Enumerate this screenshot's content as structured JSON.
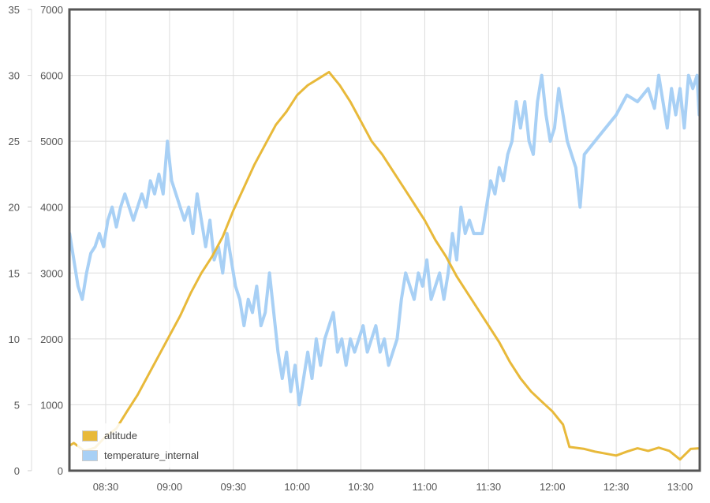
{
  "chart_data": {
    "type": "line",
    "title": "",
    "xlabel": "",
    "ylabel_left_outer": "",
    "ylabel_left_inner": "",
    "x_ticks": [
      "08:30",
      "09:00",
      "09:30",
      "10:00",
      "10:30",
      "11:00",
      "11:30",
      "12:00",
      "12:30",
      "13:00"
    ],
    "y_axis_temperature": {
      "ticks": [
        0,
        5,
        10,
        15,
        20,
        25,
        30,
        35
      ],
      "range": [
        0,
        35
      ]
    },
    "y_axis_altitude": {
      "ticks": [
        0,
        1000,
        2000,
        3000,
        4000,
        5000,
        6000,
        7000
      ],
      "range": [
        0,
        7000
      ]
    },
    "x_range": [
      "08:13",
      "13:09"
    ],
    "grid": true,
    "legend_position": "bottom-left",
    "series": [
      {
        "name": "altitude",
        "color": "#e8b93a",
        "axis": "altitude",
        "points": [
          [
            "08:13",
            380
          ],
          [
            "08:15",
            420
          ],
          [
            "08:20",
            300
          ],
          [
            "08:25",
            350
          ],
          [
            "08:30",
            520
          ],
          [
            "08:35",
            640
          ],
          [
            "08:40",
            900
          ],
          [
            "08:45",
            1150
          ],
          [
            "08:50",
            1450
          ],
          [
            "08:55",
            1750
          ],
          [
            "09:00",
            2050
          ],
          [
            "09:05",
            2350
          ],
          [
            "09:10",
            2700
          ],
          [
            "09:15",
            3000
          ],
          [
            "09:20",
            3250
          ],
          [
            "09:25",
            3550
          ],
          [
            "09:30",
            3950
          ],
          [
            "09:35",
            4300
          ],
          [
            "09:40",
            4650
          ],
          [
            "09:45",
            4950
          ],
          [
            "09:50",
            5250
          ],
          [
            "09:55",
            5450
          ],
          [
            "10:00",
            5700
          ],
          [
            "10:05",
            5850
          ],
          [
            "10:10",
            5950
          ],
          [
            "10:15",
            6050
          ],
          [
            "10:20",
            5850
          ],
          [
            "10:25",
            5600
          ],
          [
            "10:30",
            5300
          ],
          [
            "10:35",
            5000
          ],
          [
            "10:40",
            4800
          ],
          [
            "10:45",
            4550
          ],
          [
            "10:50",
            4300
          ],
          [
            "10:55",
            4050
          ],
          [
            "11:00",
            3800
          ],
          [
            "11:05",
            3500
          ],
          [
            "11:10",
            3250
          ],
          [
            "11:15",
            2950
          ],
          [
            "11:20",
            2700
          ],
          [
            "11:25",
            2450
          ],
          [
            "11:30",
            2200
          ],
          [
            "11:35",
            1950
          ],
          [
            "11:40",
            1650
          ],
          [
            "11:45",
            1400
          ],
          [
            "11:50",
            1200
          ],
          [
            "11:55",
            1050
          ],
          [
            "12:00",
            900
          ],
          [
            "12:05",
            700
          ],
          [
            "12:08",
            360
          ],
          [
            "12:15",
            330
          ],
          [
            "12:20",
            290
          ],
          [
            "12:25",
            260
          ],
          [
            "12:30",
            230
          ],
          [
            "12:35",
            290
          ],
          [
            "12:40",
            340
          ],
          [
            "12:45",
            300
          ],
          [
            "12:50",
            350
          ],
          [
            "12:55",
            300
          ],
          [
            "13:00",
            170
          ],
          [
            "13:05",
            330
          ],
          [
            "13:09",
            340
          ]
        ]
      },
      {
        "name": "temperature_internal",
        "color": "#a8d0f5",
        "axis": "temperature",
        "points": [
          [
            "08:13",
            18
          ],
          [
            "08:15",
            16
          ],
          [
            "08:17",
            14
          ],
          [
            "08:19",
            13
          ],
          [
            "08:21",
            15
          ],
          [
            "08:23",
            16.5
          ],
          [
            "08:25",
            17
          ],
          [
            "08:27",
            18
          ],
          [
            "08:29",
            17
          ],
          [
            "08:31",
            19
          ],
          [
            "08:33",
            20
          ],
          [
            "08:35",
            18.5
          ],
          [
            "08:37",
            20
          ],
          [
            "08:39",
            21
          ],
          [
            "08:41",
            20
          ],
          [
            "08:43",
            19
          ],
          [
            "08:45",
            20
          ],
          [
            "08:47",
            21
          ],
          [
            "08:49",
            20
          ],
          [
            "08:51",
            22
          ],
          [
            "08:53",
            21
          ],
          [
            "08:55",
            22.5
          ],
          [
            "08:57",
            21
          ],
          [
            "08:59",
            25
          ],
          [
            "09:01",
            22
          ],
          [
            "09:03",
            21
          ],
          [
            "09:05",
            20
          ],
          [
            "09:07",
            19
          ],
          [
            "09:09",
            20
          ],
          [
            "09:11",
            18
          ],
          [
            "09:13",
            21
          ],
          [
            "09:15",
            19
          ],
          [
            "09:17",
            17
          ],
          [
            "09:19",
            19
          ],
          [
            "09:21",
            16
          ],
          [
            "09:23",
            17
          ],
          [
            "09:25",
            15
          ],
          [
            "09:27",
            18
          ],
          [
            "09:29",
            16
          ],
          [
            "09:31",
            14
          ],
          [
            "09:33",
            13
          ],
          [
            "09:35",
            11
          ],
          [
            "09:37",
            13
          ],
          [
            "09:39",
            12
          ],
          [
            "09:41",
            14
          ],
          [
            "09:43",
            11
          ],
          [
            "09:45",
            12
          ],
          [
            "09:47",
            15
          ],
          [
            "09:49",
            12
          ],
          [
            "09:51",
            9
          ],
          [
            "09:53",
            7
          ],
          [
            "09:55",
            9
          ],
          [
            "09:57",
            6
          ],
          [
            "09:59",
            8
          ],
          [
            "10:01",
            5
          ],
          [
            "10:03",
            7
          ],
          [
            "10:05",
            9
          ],
          [
            "10:07",
            7
          ],
          [
            "10:09",
            10
          ],
          [
            "10:11",
            8
          ],
          [
            "10:13",
            10
          ],
          [
            "10:15",
            11
          ],
          [
            "10:17",
            12
          ],
          [
            "10:19",
            9
          ],
          [
            "10:21",
            10
          ],
          [
            "10:23",
            8
          ],
          [
            "10:25",
            10
          ],
          [
            "10:27",
            9
          ],
          [
            "10:29",
            10
          ],
          [
            "10:31",
            11
          ],
          [
            "10:33",
            9
          ],
          [
            "10:35",
            10
          ],
          [
            "10:37",
            11
          ],
          [
            "10:39",
            9
          ],
          [
            "10:41",
            10
          ],
          [
            "10:43",
            8
          ],
          [
            "10:45",
            9
          ],
          [
            "10:47",
            10
          ],
          [
            "10:49",
            13
          ],
          [
            "10:51",
            15
          ],
          [
            "10:53",
            14
          ],
          [
            "10:55",
            13
          ],
          [
            "10:57",
            15
          ],
          [
            "10:59",
            14
          ],
          [
            "11:01",
            16
          ],
          [
            "11:03",
            13
          ],
          [
            "11:05",
            14
          ],
          [
            "11:07",
            15
          ],
          [
            "11:09",
            13
          ],
          [
            "11:11",
            15
          ],
          [
            "11:13",
            18
          ],
          [
            "11:15",
            16
          ],
          [
            "11:17",
            20
          ],
          [
            "11:19",
            18
          ],
          [
            "11:21",
            19
          ],
          [
            "11:23",
            18
          ],
          [
            "11:25",
            18
          ],
          [
            "11:27",
            18
          ],
          [
            "11:29",
            20
          ],
          [
            "11:31",
            22
          ],
          [
            "11:33",
            21
          ],
          [
            "11:35",
            23
          ],
          [
            "11:37",
            22
          ],
          [
            "11:39",
            24
          ],
          [
            "11:41",
            25
          ],
          [
            "11:43",
            28
          ],
          [
            "11:45",
            26
          ],
          [
            "11:47",
            28
          ],
          [
            "11:49",
            25
          ],
          [
            "11:51",
            24
          ],
          [
            "11:53",
            28
          ],
          [
            "11:55",
            30
          ],
          [
            "11:57",
            27
          ],
          [
            "11:59",
            25
          ],
          [
            "12:01",
            26
          ],
          [
            "12:03",
            29
          ],
          [
            "12:05",
            27
          ],
          [
            "12:07",
            25
          ],
          [
            "12:09",
            24
          ],
          [
            "12:11",
            23
          ],
          [
            "12:13",
            20
          ],
          [
            "12:15",
            24
          ],
          [
            "12:20",
            25
          ],
          [
            "12:25",
            26
          ],
          [
            "12:30",
            27
          ],
          [
            "12:35",
            28.5
          ],
          [
            "12:40",
            28
          ],
          [
            "12:45",
            29
          ],
          [
            "12:48",
            27.5
          ],
          [
            "12:50",
            30
          ],
          [
            "12:52",
            28
          ],
          [
            "12:54",
            26
          ],
          [
            "12:56",
            29
          ],
          [
            "12:58",
            27
          ],
          [
            "13:00",
            29
          ],
          [
            "13:02",
            26
          ],
          [
            "13:04",
            30
          ],
          [
            "13:06",
            29
          ],
          [
            "13:08",
            30
          ],
          [
            "13:09",
            27
          ]
        ]
      }
    ]
  },
  "legend": {
    "items": [
      {
        "label": "altitude",
        "color": "#e8b93a"
      },
      {
        "label": "temperature_internal",
        "color": "#a8d0f5"
      }
    ]
  },
  "colors": {
    "frame": "#555555",
    "grid": "#dddddd",
    "tick_text": "#555555"
  }
}
